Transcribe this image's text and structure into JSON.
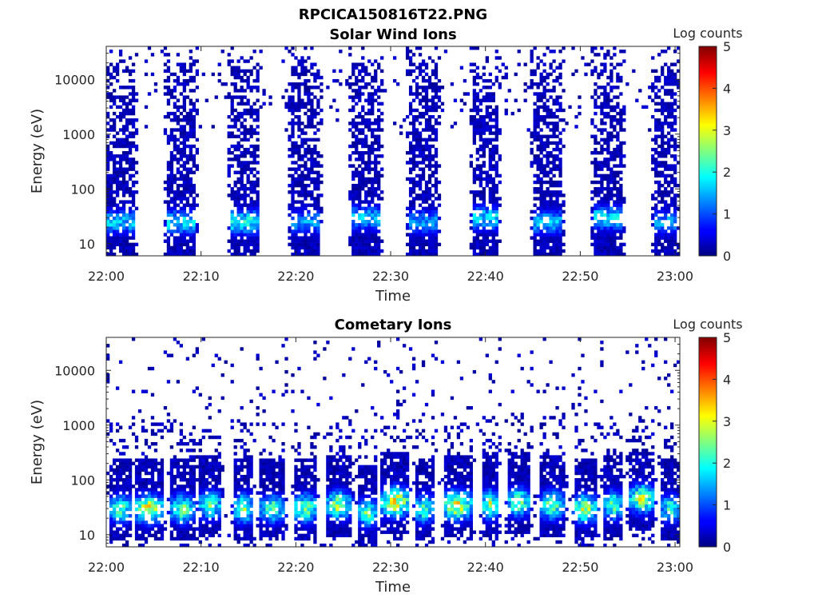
{
  "figure_title": "RPCICA150816T22.PNG",
  "chart_data": [
    {
      "type": "heatmap",
      "title": "Solar Wind Ions",
      "xlabel": "Time",
      "ylabel": "Energy (eV)",
      "x_ticks": [
        "22:00",
        "22:10",
        "22:20",
        "22:30",
        "22:40",
        "22:50",
        "23:00"
      ],
      "y_ticks": [
        "10",
        "100",
        "1000",
        "10000"
      ],
      "y_scale": "log",
      "ylim": [
        6,
        40000
      ],
      "xlim_minutes": [
        0,
        60.5
      ],
      "colorbar": {
        "label": "Log counts",
        "ticks": [
          "0",
          "1",
          "2",
          "3",
          "4",
          "5"
        ],
        "range": [
          0,
          5
        ],
        "colormap": "jet"
      },
      "bursts": [
        {
          "t": 1.5,
          "w": 3.0,
          "peak_energy": 25,
          "peak_log": 1.8
        },
        {
          "t": 8.0,
          "w": 3.0,
          "peak_energy": 25,
          "peak_log": 2.0
        },
        {
          "t": 14.5,
          "w": 3.0,
          "peak_energy": 25,
          "peak_log": 2.2
        },
        {
          "t": 21.0,
          "w": 3.0,
          "peak_energy": 25,
          "peak_log": 1.6
        },
        {
          "t": 27.5,
          "w": 3.0,
          "peak_energy": 30,
          "peak_log": 1.8
        },
        {
          "t": 33.5,
          "w": 3.0,
          "peak_energy": 25,
          "peak_log": 1.6
        },
        {
          "t": 40.0,
          "w": 3.0,
          "peak_energy": 30,
          "peak_log": 2.0
        },
        {
          "t": 46.5,
          "w": 3.0,
          "peak_energy": 25,
          "peak_log": 1.8
        },
        {
          "t": 53.0,
          "w": 3.0,
          "peak_energy": 30,
          "peak_log": 2.0
        },
        {
          "t": 59.0,
          "w": 2.5,
          "peak_energy": 25,
          "peak_log": 1.6
        }
      ]
    },
    {
      "type": "heatmap",
      "title": "Cometary Ions",
      "xlabel": "Time",
      "ylabel": "Energy (eV)",
      "x_ticks": [
        "22:00",
        "22:10",
        "22:20",
        "22:30",
        "22:40",
        "22:50",
        "23:00"
      ],
      "y_ticks": [
        "10",
        "100",
        "1000",
        "10000"
      ],
      "y_scale": "log",
      "ylim": [
        6,
        40000
      ],
      "xlim_minutes": [
        0,
        60.5
      ],
      "colorbar": {
        "label": "Log counts",
        "ticks": [
          "0",
          "1",
          "2",
          "3",
          "4",
          "5"
        ],
        "range": [
          0,
          5
        ],
        "colormap": "jet"
      },
      "bursts": [
        {
          "t": 1.5,
          "w": 2.5,
          "peak_energy": 30,
          "peak_log": 2.8
        },
        {
          "t": 4.5,
          "w": 3.0,
          "peak_energy": 30,
          "peak_log": 3.6
        },
        {
          "t": 8.0,
          "w": 2.5,
          "peak_energy": 30,
          "peak_log": 3.0
        },
        {
          "t": 11.0,
          "w": 2.5,
          "peak_energy": 35,
          "peak_log": 2.8
        },
        {
          "t": 14.5,
          "w": 2.0,
          "peak_energy": 30,
          "peak_log": 3.2
        },
        {
          "t": 17.5,
          "w": 2.5,
          "peak_energy": 30,
          "peak_log": 2.8
        },
        {
          "t": 21.0,
          "w": 2.5,
          "peak_energy": 30,
          "peak_log": 3.2
        },
        {
          "t": 24.5,
          "w": 2.5,
          "peak_energy": 35,
          "peak_log": 3.2
        },
        {
          "t": 27.5,
          "w": 2.0,
          "peak_energy": 25,
          "peak_log": 2.8
        },
        {
          "t": 30.5,
          "w": 3.0,
          "peak_energy": 40,
          "peak_log": 3.8
        },
        {
          "t": 33.5,
          "w": 2.0,
          "peak_energy": 30,
          "peak_log": 2.8
        },
        {
          "t": 37.0,
          "w": 3.0,
          "peak_energy": 35,
          "peak_log": 3.8
        },
        {
          "t": 40.5,
          "w": 2.0,
          "peak_energy": 35,
          "peak_log": 3.2
        },
        {
          "t": 43.5,
          "w": 2.5,
          "peak_energy": 40,
          "peak_log": 3.0
        },
        {
          "t": 47.0,
          "w": 2.5,
          "peak_energy": 35,
          "peak_log": 3.0
        },
        {
          "t": 50.5,
          "w": 2.5,
          "peak_energy": 30,
          "peak_log": 3.4
        },
        {
          "t": 53.5,
          "w": 2.0,
          "peak_energy": 35,
          "peak_log": 3.0
        },
        {
          "t": 56.5,
          "w": 2.5,
          "peak_energy": 45,
          "peak_log": 3.4
        },
        {
          "t": 59.5,
          "w": 2.0,
          "peak_energy": 30,
          "peak_log": 2.6
        }
      ]
    }
  ]
}
